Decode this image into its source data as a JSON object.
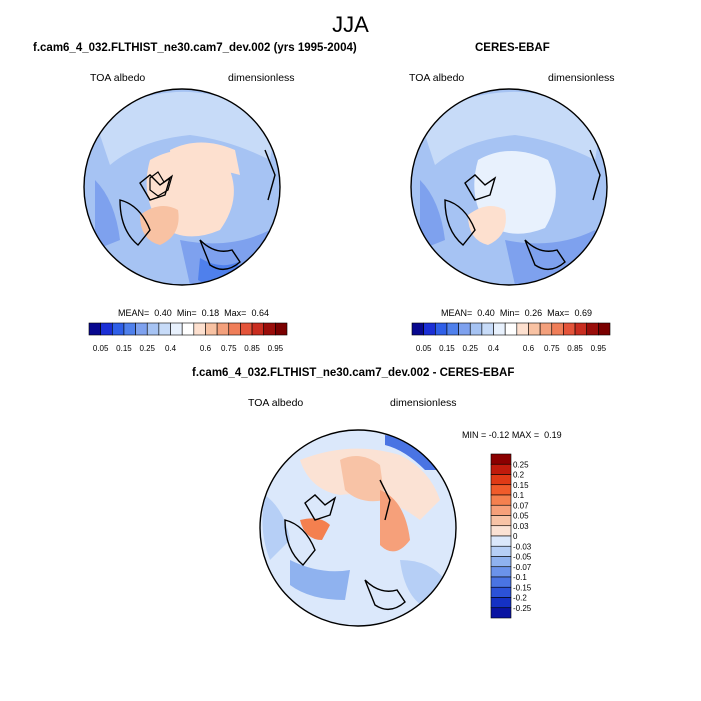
{
  "figure_title": "JJA",
  "panels": [
    {
      "title": "f.cam6_4_032.FLTHIST_ne30.cam7_dev.002 (yrs 1995-2004)",
      "variable": "TOA albedo",
      "units": "dimensionless",
      "stats": {
        "mean_label": "MEAN=",
        "mean": "0.40",
        "min_label": "Min=",
        "min": "0.18",
        "max_label": "Max=",
        "max": "0.64"
      }
    },
    {
      "title": "CERES-EBAF",
      "variable": "TOA albedo",
      "units": "dimensionless",
      "stats": {
        "mean_label": "MEAN=",
        "mean": "0.40",
        "min_label": "Min=",
        "min": "0.26",
        "max_label": "Max=",
        "max": "0.69"
      }
    },
    {
      "title": "f.cam6_4_032.FLTHIST_ne30.cam7_dev.002 - CERES-EBAF",
      "variable": "TOA albedo",
      "units": "dimensionless",
      "stats": {
        "min_label": "MIN =",
        "min": "-0.12",
        "max_label": "MAX =",
        "max": "0.19"
      }
    }
  ],
  "colorbar_abs": {
    "labels": [
      "0.05",
      "0.15",
      "0.25",
      "0.4",
      "0.6",
      "0.75",
      "0.85",
      "0.95"
    ],
    "colors": [
      "#08088f",
      "#1b2fd6",
      "#2f5fe8",
      "#4f80ec",
      "#7ea1ee",
      "#a6c3f3",
      "#c7dbf8",
      "#e8f1fd",
      "#ffffff",
      "#fde0cf",
      "#f8c2a3",
      "#f3a07c",
      "#ef7e59",
      "#e4543a",
      "#c92d20",
      "#9a0d0a",
      "#7a0000"
    ]
  },
  "colorbar_diff": {
    "labels": [
      "0.25",
      "0.2",
      "0.15",
      "0.1",
      "0.07",
      "0.05",
      "0.03",
      "0",
      "-0.03",
      "-0.05",
      "-0.07",
      "-0.1",
      "-0.15",
      "-0.2",
      "-0.25"
    ],
    "colors": [
      "#8b0000",
      "#c01b0c",
      "#e03a16",
      "#f05b2b",
      "#f4804f",
      "#f6a07a",
      "#f8c3a6",
      "#fbe2d4",
      "#dbe8fb",
      "#b6cff6",
      "#8fb2ef",
      "#6b93ea",
      "#4a74e3",
      "#2c52d8",
      "#1531c4",
      "#0a14a2"
    ]
  },
  "chart_data": [
    {
      "type": "heatmap",
      "title": "f.cam6_4_032.FLTHIST_ne30.cam7_dev.002 (yrs 1995-2004)",
      "variable": "TOA albedo",
      "units": "dimensionless",
      "projection": "north polar stereographic",
      "mean": 0.4,
      "min": 0.18,
      "max": 0.64
    },
    {
      "type": "heatmap",
      "title": "CERES-EBAF",
      "variable": "TOA albedo",
      "units": "dimensionless",
      "projection": "north polar stereographic",
      "mean": 0.4,
      "min": 0.26,
      "max": 0.69
    },
    {
      "type": "heatmap",
      "title": "f.cam6_4_032.FLTHIST_ne30.cam7_dev.002 - CERES-EBAF",
      "variable": "TOA albedo",
      "units": "dimensionless",
      "projection": "north polar stereographic",
      "min": -0.12,
      "max": 0.19
    }
  ]
}
